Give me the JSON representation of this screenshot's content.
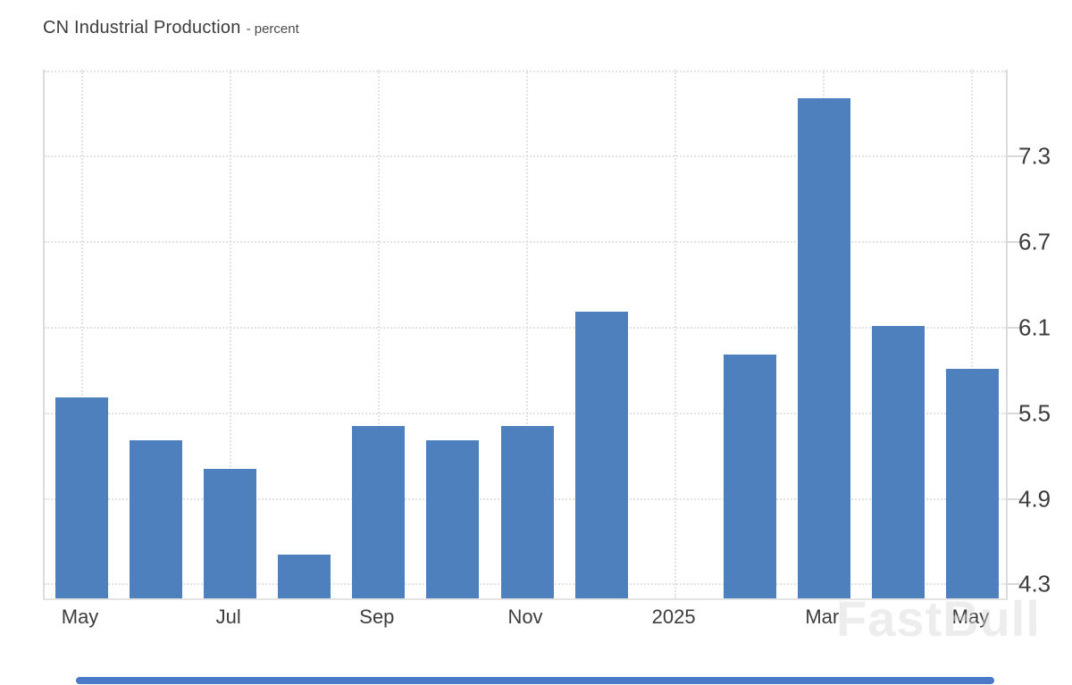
{
  "header": {
    "title_main": "CN Industrial Production",
    "title_sub": "- percent"
  },
  "watermark": "FastBull",
  "chart_data": {
    "type": "bar",
    "title": "CN Industrial Production",
    "ylabel": "percent",
    "categories": [
      "May 2024",
      "Jun 2024",
      "Jul 2024",
      "Aug 2024",
      "Sep 2024",
      "Oct 2024",
      "Nov 2024",
      "Dec 2024",
      "Jan 2025",
      "Feb 2025",
      "Mar 2025",
      "Apr 2025",
      "May 2025"
    ],
    "values": [
      5.6,
      5.3,
      5.1,
      4.5,
      5.4,
      5.3,
      5.4,
      6.2,
      null,
      5.9,
      7.7,
      6.1,
      5.8
    ],
    "x_tick_labels": [
      "May",
      "Jul",
      "Sep",
      "Nov",
      "2025",
      "Mar",
      "May"
    ],
    "x_tick_slot_indices": [
      0,
      2,
      4,
      6,
      8,
      10,
      12
    ],
    "y_tick_labels": [
      "7.3",
      "6.7",
      "6.1",
      "5.5",
      "4.9",
      "4.3"
    ],
    "y_tick_values": [
      7.3,
      6.7,
      6.1,
      5.5,
      4.9,
      4.3
    ],
    "gridline_values": [
      7.9,
      7.3,
      6.7,
      6.1,
      5.5,
      4.9,
      4.3
    ],
    "ylim": [
      4.19,
      7.91
    ],
    "grid": "dotted",
    "legend": "none",
    "y_axis_position": "right",
    "bar_color": "#4d80bc",
    "grid_color": "#e2e2e2",
    "axis_text_color": "#3d3d3d",
    "scrollbar_color": "#4a79c7"
  }
}
